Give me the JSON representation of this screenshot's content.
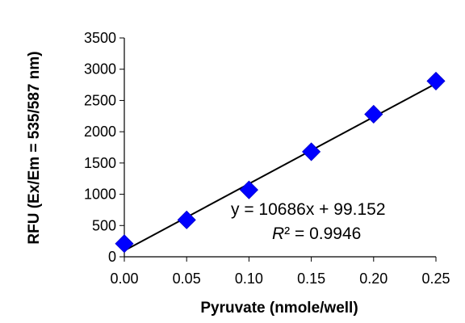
{
  "chart_data": {
    "type": "scatter",
    "xlabel": "Pyruvate (nmole/well)",
    "ylabel": "RFU (Ex/Em = 535/587 nm)",
    "xlim": [
      0,
      0.25
    ],
    "ylim": [
      0,
      3500
    ],
    "x_ticks": [
      "0.00",
      "0.05",
      "0.10",
      "0.15",
      "0.20",
      "0.25"
    ],
    "y_ticks": [
      "0",
      "500",
      "1000",
      "1500",
      "2000",
      "2500",
      "3000",
      "3500"
    ],
    "grid": false,
    "marker_color": "#0000ff",
    "points": [
      {
        "x": 0.0,
        "y": 210
      },
      {
        "x": 0.05,
        "y": 590
      },
      {
        "x": 0.1,
        "y": 1070
      },
      {
        "x": 0.15,
        "y": 1680
      },
      {
        "x": 0.2,
        "y": 2280
      },
      {
        "x": 0.25,
        "y": 2810
      }
    ],
    "trendline": {
      "slope": 10686,
      "intercept": 99.152,
      "color": "#000000"
    },
    "annotations": {
      "equation": "y = 10686x + 99.152",
      "r2_label": "R",
      "r2_rest": "² = 0.9946"
    }
  }
}
